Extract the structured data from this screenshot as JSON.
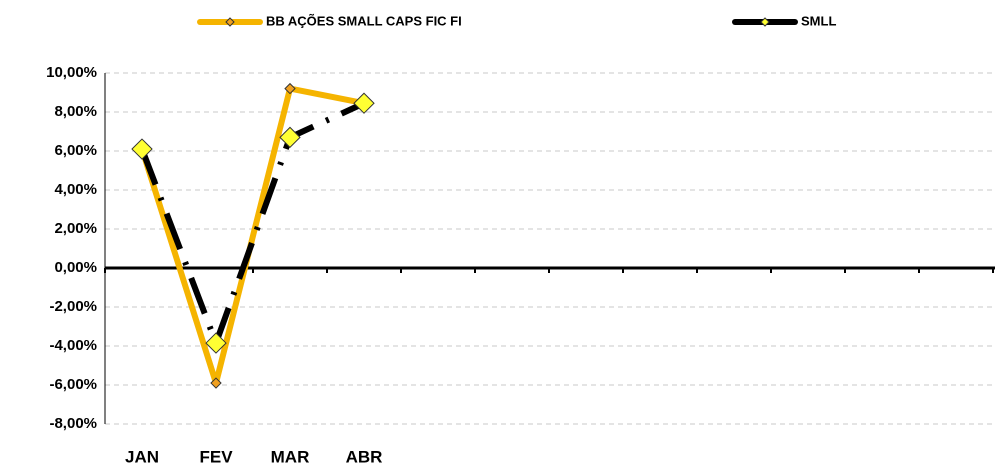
{
  "chart_data": {
    "type": "line",
    "categories": [
      "JAN",
      "FEV",
      "MAR",
      "ABR",
      null,
      null,
      null,
      null,
      null,
      null,
      null,
      null
    ],
    "series": [
      {
        "name": "BB AÇÕES SMALL CAPS FIC FI",
        "color": "#F5B400",
        "marker_color": "#F0A020",
        "values": [
          6.1,
          -5.9,
          9.2,
          8.45,
          null,
          null,
          null,
          null,
          null,
          null,
          null,
          null
        ]
      },
      {
        "name": "SMLL",
        "color": "#000000",
        "marker_color": "#FFFF33",
        "values": [
          6.1,
          -3.85,
          6.7,
          8.45,
          null,
          null,
          null,
          null,
          null,
          null,
          null,
          null
        ]
      }
    ],
    "ylim": [
      -8,
      10
    ],
    "yticks": [
      {
        "value": -8,
        "label": "-8,00%"
      },
      {
        "value": -6,
        "label": "-6,00%"
      },
      {
        "value": -4,
        "label": "-4,00%"
      },
      {
        "value": -2,
        "label": "-2,00%"
      },
      {
        "value": 0,
        "label": "0,00%"
      },
      {
        "value": 2,
        "label": "2,00%"
      },
      {
        "value": 4,
        "label": "4,00%"
      },
      {
        "value": 6,
        "label": "6,00%"
      },
      {
        "value": 8,
        "label": "8,00%"
      },
      {
        "value": 10,
        "label": "10,00%"
      }
    ],
    "grid": true,
    "legend": "top"
  }
}
